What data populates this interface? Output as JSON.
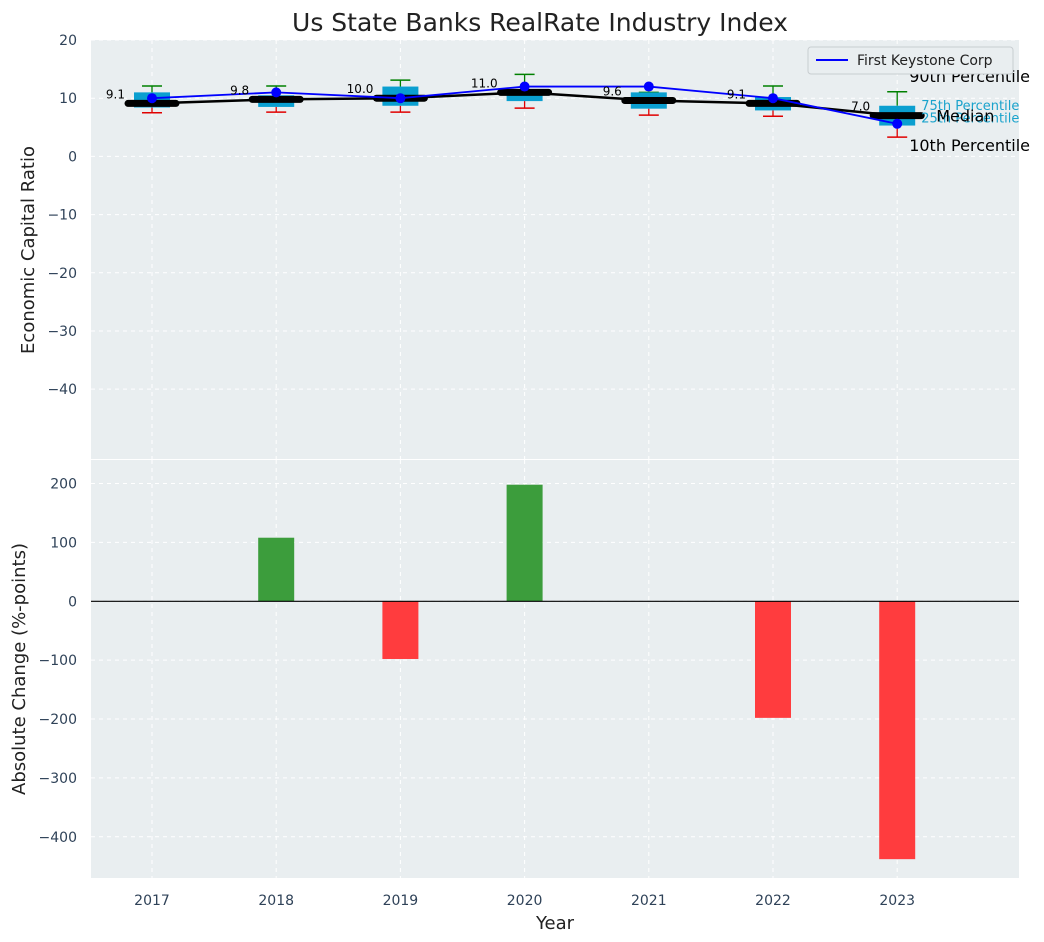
{
  "chart_data": {
    "type": "box+line+bar",
    "title": "Us State Banks RealRate Industry Index",
    "xlabel": "Year",
    "years": [
      "2017",
      "2018",
      "2019",
      "2020",
      "2021",
      "2022",
      "2023"
    ],
    "top": {
      "ylabel": "Economic Capital Ratio",
      "ylim": [
        -52,
        20
      ],
      "yticks": [
        "20",
        "10",
        "0",
        "−10",
        "−20",
        "−30",
        "−40"
      ],
      "ytick_values": [
        20,
        10,
        0,
        -10,
        -20,
        -30,
        -40
      ],
      "boxes": [
        {
          "p10": 7.5,
          "p25": 8.4,
          "median": 9.1,
          "p75": 11.0,
          "p90": 12.1
        },
        {
          "p10": 7.6,
          "p25": 8.5,
          "median": 9.8,
          "p75": 10.5,
          "p90": 12.1
        },
        {
          "p10": 7.6,
          "p25": 8.7,
          "median": 10.0,
          "p75": 12.0,
          "p90": 13.1
        },
        {
          "p10": 8.3,
          "p25": 9.5,
          "median": 11.0,
          "p75": 11.5,
          "p90": 14.1
        },
        {
          "p10": 7.1,
          "p25": 8.2,
          "median": 9.6,
          "p75": 11.0,
          "p90": 11.0
        },
        {
          "p10": 6.9,
          "p25": 7.9,
          "median": 9.1,
          "p75": 10.2,
          "p90": 12.1
        },
        {
          "p10": 3.3,
          "p25": 5.3,
          "median": 7.0,
          "p75": 8.7,
          "p90": 11.1
        }
      ],
      "median_labels": [
        "9.1",
        "9.8",
        "10.0",
        "11.0",
        "9.6",
        "9.1",
        "7.0"
      ],
      "company": {
        "name": "First Keystone Corp",
        "values": [
          10.0,
          11.0,
          10.0,
          12.0,
          12.0,
          10.0,
          5.6
        ]
      },
      "legend_label": "First Keystone Corp",
      "percentile_labels": {
        "p90": "90th Percentile",
        "p75": "75th Percentile",
        "median": "Median",
        "p25": "25th Percentile",
        "p10": "10th Percentile"
      }
    },
    "bottom": {
      "ylabel": "Absolute Change (%-points)",
      "ylim": [
        -470,
        240
      ],
      "yticks": [
        "200",
        "100",
        "0",
        "−100",
        "−200",
        "−300",
        "−400"
      ],
      "ytick_values": [
        200,
        100,
        0,
        -100,
        -200,
        -300,
        -400
      ],
      "values": [
        0,
        108,
        -98,
        198,
        0,
        -198,
        -438
      ]
    },
    "colors": {
      "bg": "#e9eef0",
      "box": "#0a9fd0",
      "median": "#000000",
      "company_line": "#0000ff",
      "whisker_high": "#008000",
      "whisker_low": "#e00000",
      "bar_pos": "#3c9d3c",
      "bar_neg": "#ff3c3e",
      "tick_text": "#2f4258"
    }
  }
}
